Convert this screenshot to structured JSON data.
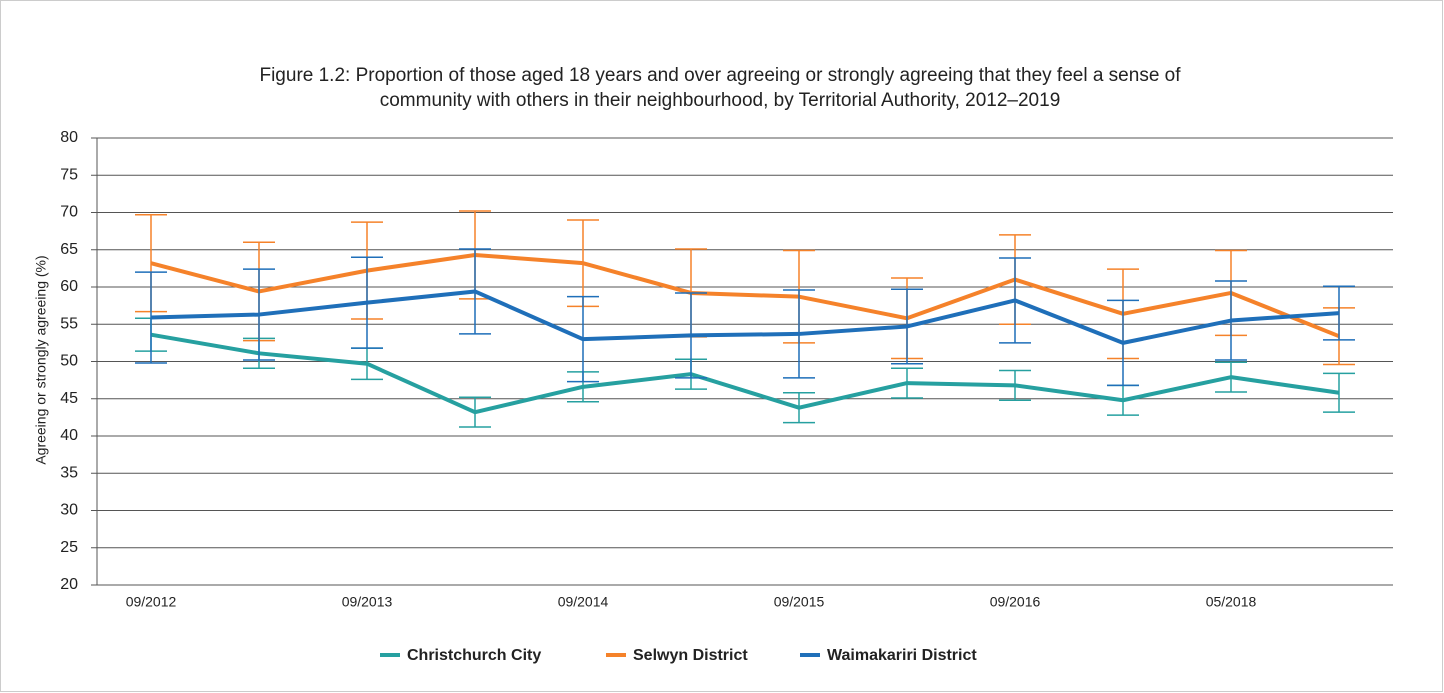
{
  "chart_data": {
    "type": "line",
    "title": [
      "Figure 1.2: Proportion of those aged 18 years and over agreeing or strongly agreeing that they feel a sense of",
      "community with others in their neighbourhood, by Territorial Authority, 2012–2019"
    ],
    "y_label": "Agreeing or strongly agreeing (%)",
    "categories": [
      "09/2012",
      null,
      "09/2013",
      null,
      "09/2014",
      null,
      "09/2015",
      null,
      "09/2016",
      null,
      "05/2018",
      null
    ],
    "series": [
      {
        "name": "Christchurch City",
        "color": "#26a0a0",
        "values": [
          53.6,
          51.1,
          49.7,
          43.2,
          46.6,
          48.3,
          43.8,
          47.1,
          46.8,
          44.8,
          47.9,
          45.8
        ],
        "errors": [
          2.2,
          2.0,
          2.1,
          2.0,
          2.0,
          2.0,
          2.0,
          2.0,
          2.0,
          2.0,
          2.0,
          2.6
        ]
      },
      {
        "name": "Selwyn District",
        "color": "#f5822a",
        "values": [
          63.2,
          59.4,
          62.2,
          64.3,
          63.2,
          59.2,
          58.7,
          55.8,
          61.0,
          56.4,
          59.2,
          53.4
        ],
        "errors": [
          6.5,
          6.6,
          6.5,
          5.9,
          5.8,
          5.9,
          6.2,
          5.4,
          6.0,
          6.0,
          5.7,
          3.8
        ]
      },
      {
        "name": "Waimakariri District",
        "color": "#1f6fb9",
        "values": [
          55.9,
          56.3,
          57.9,
          59.4,
          53.0,
          53.5,
          53.7,
          54.7,
          58.2,
          52.5,
          55.5,
          56.5
        ],
        "errors": [
          6.1,
          6.1,
          6.1,
          5.7,
          5.7,
          5.7,
          5.9,
          5.0,
          5.7,
          5.7,
          5.3,
          3.6
        ]
      }
    ],
    "ylim": [
      20,
      80
    ],
    "yticks": [
      20,
      25,
      30,
      35,
      40,
      45,
      50,
      55,
      60,
      65,
      70,
      75,
      80
    ],
    "grid": true,
    "legend": "bottom"
  }
}
